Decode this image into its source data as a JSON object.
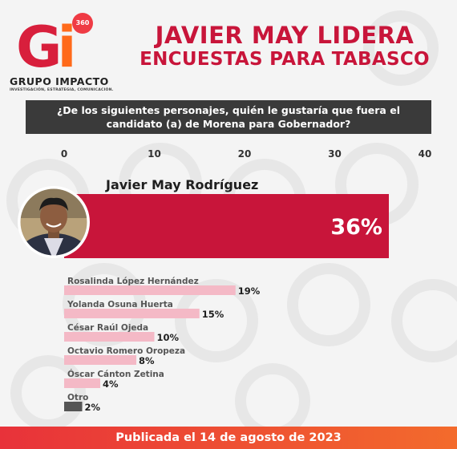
{
  "brand": {
    "logo_letters": "Gi",
    "logo_badge": "360",
    "name": "GRUPO IMPACTO",
    "tagline": "INVESTIGACIÓN, ESTRATEGIA, COMUNICACIÓN."
  },
  "headline": {
    "line1": "JAVIER MAY LIDERA",
    "line2": "ENCUESTAS PARA TABASCO"
  },
  "question": {
    "line1": "¿De los siguientes personajes, quién le gustaría que fuera el",
    "line2": "candidato (a) de Morena para Gobernador?"
  },
  "colors": {
    "leader_bar": "#c8153a",
    "other_bar": "#f4b9c6",
    "otro_bar": "#555555",
    "headline": "#c8153a"
  },
  "chart_data": {
    "type": "bar",
    "orientation": "horizontal",
    "xlim": [
      0,
      40
    ],
    "ticks": [
      0,
      10,
      20,
      30,
      40
    ],
    "categories": [
      "Javier May Rodríguez",
      "Rosalinda López Hernández",
      "Yolanda Osuna Huerta",
      "César Raúl Ojeda",
      "Octavio Romero Oropeza",
      "Óscar Cánton Zetina",
      "Otro"
    ],
    "values": [
      36,
      19,
      15,
      10,
      8,
      4,
      2
    ],
    "value_labels": [
      "36%",
      "19%",
      "15%",
      "10%",
      "8%",
      "4%",
      "2%"
    ]
  },
  "footer": "Publicada el 14 de agosto de 2023"
}
